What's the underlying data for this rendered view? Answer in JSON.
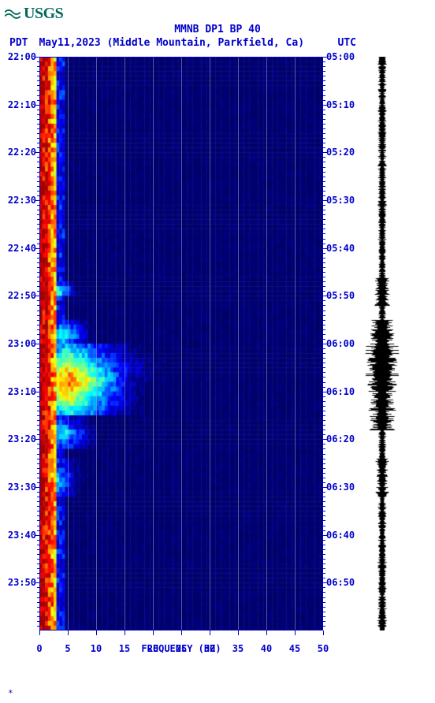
{
  "logo": {
    "text": "USGS"
  },
  "chart": {
    "type": "spectrogram",
    "title": "MMNB DP1 BP 40",
    "subtitle_left_tz": "PDT",
    "subtitle_date_loc": "May11,2023 (Middle Mountain, Parkfield, Ca)",
    "subtitle_right_tz": "UTC",
    "x_axis_title": "FREQUENCY (HZ)",
    "x_ticks": [
      0,
      5,
      10,
      15,
      20,
      25,
      30,
      35,
      40,
      45,
      50
    ],
    "xlim": [
      0,
      50
    ],
    "y_left_labels": [
      "22:00",
      "22:10",
      "22:20",
      "22:30",
      "22:40",
      "22:50",
      "23:00",
      "23:10",
      "23:20",
      "23:30",
      "23:40",
      "23:50"
    ],
    "y_right_labels": [
      "05:00",
      "05:10",
      "05:20",
      "05:30",
      "05:40",
      "05:50",
      "06:00",
      "06:10",
      "06:20",
      "06:30",
      "06:40",
      "06:50"
    ],
    "y_minor_per_major": 10,
    "time_rows": 120,
    "freq_cols": 100,
    "colormap": [
      [
        0,
        0,
        96
      ],
      [
        0,
        0,
        112
      ],
      [
        0,
        0,
        144
      ],
      [
        0,
        0,
        176
      ],
      [
        0,
        0,
        208
      ],
      [
        0,
        0,
        255
      ],
      [
        0,
        64,
        255
      ],
      [
        0,
        128,
        255
      ],
      [
        0,
        192,
        255
      ],
      [
        0,
        255,
        255
      ],
      [
        64,
        255,
        192
      ],
      [
        128,
        255,
        128
      ],
      [
        192,
        255,
        64
      ],
      [
        255,
        255,
        0
      ],
      [
        255,
        192,
        0
      ],
      [
        255,
        128,
        0
      ],
      [
        255,
        64,
        0
      ],
      [
        255,
        0,
        0
      ],
      [
        208,
        0,
        0
      ],
      [
        160,
        0,
        0
      ]
    ],
    "low_freq_band_cols": 6,
    "events": [
      {
        "row_start": 0,
        "row_end": 120,
        "peak_col": 2,
        "spread": 4,
        "intensity": 1.0
      },
      {
        "row_start": 47,
        "row_end": 50,
        "peak_col": 6,
        "spread": 8,
        "intensity": 0.6
      },
      {
        "row_start": 55,
        "row_end": 60,
        "peak_col": 8,
        "spread": 12,
        "intensity": 0.55
      },
      {
        "row_start": 60,
        "row_end": 75,
        "peak_col": 10,
        "spread": 28,
        "intensity": 0.85
      },
      {
        "row_start": 62,
        "row_end": 68,
        "peak_col": 6,
        "spread": 40,
        "intensity": 0.6
      },
      {
        "row_start": 75,
        "row_end": 82,
        "peak_col": 8,
        "spread": 14,
        "intensity": 0.5
      },
      {
        "row_start": 84,
        "row_end": 92,
        "peak_col": 6,
        "spread": 10,
        "intensity": 0.45
      }
    ],
    "grid_color": "#b0b0c8",
    "axis_color": "#0000cc",
    "background_color": "#ffffff"
  },
  "seismogram": {
    "color": "#000000",
    "base_amplitude": 4,
    "events": [
      {
        "row_start": 46,
        "row_end": 52,
        "amplitude": 10
      },
      {
        "row_start": 55,
        "row_end": 78,
        "amplitude": 18
      },
      {
        "row_start": 60,
        "row_end": 70,
        "amplitude": 22
      },
      {
        "row_start": 84,
        "row_end": 92,
        "amplitude": 8
      }
    ]
  },
  "footer_mark": "*"
}
